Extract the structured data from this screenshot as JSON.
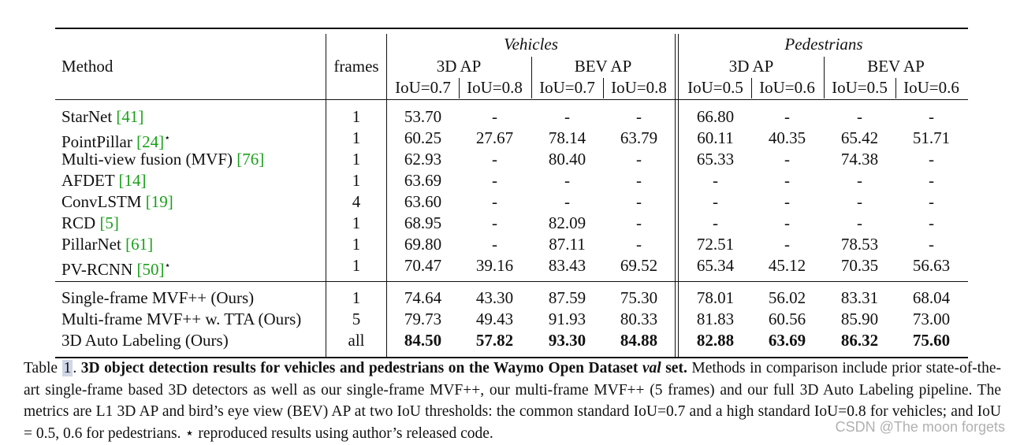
{
  "header": {
    "method": "Method",
    "frames": "frames",
    "vehicles": "Vehicles",
    "pedestrians": "Pedestrians",
    "ap3d": "3D AP",
    "bevap": "BEV AP",
    "iou": [
      "IoU=0.7",
      "IoU=0.8",
      "IoU=0.7",
      "IoU=0.8",
      "IoU=0.5",
      "IoU=0.6",
      "IoU=0.5",
      "IoU=0.6"
    ]
  },
  "rows": [
    {
      "name": "StarNet ",
      "cite": "[41]",
      "star": "",
      "frames": "1",
      "vals": [
        "53.70",
        "-",
        "-",
        "-",
        "66.80",
        "-",
        "-",
        "-"
      ],
      "bold": false
    },
    {
      "name": "PointPillar ",
      "cite": "[24]",
      "star": "⋆",
      "frames": "1",
      "vals": [
        "60.25",
        "27.67",
        "78.14",
        "63.79",
        "60.11",
        "40.35",
        "65.42",
        "51.71"
      ],
      "bold": false
    },
    {
      "name": "Multi-view fusion (MVF) ",
      "cite": "[76]",
      "star": "",
      "frames": "1",
      "vals": [
        "62.93",
        "-",
        "80.40",
        "-",
        "65.33",
        "-",
        "74.38",
        "-"
      ],
      "bold": false
    },
    {
      "name": "AFDET ",
      "cite": "[14]",
      "star": "",
      "frames": "1",
      "vals": [
        "63.69",
        "-",
        "-",
        "-",
        "-",
        "-",
        "-",
        "-"
      ],
      "bold": false
    },
    {
      "name": "ConvLSTM ",
      "cite": "[19]",
      "star": "",
      "frames": "4",
      "vals": [
        "63.60",
        "-",
        "-",
        "-",
        "-",
        "-",
        "-",
        "-"
      ],
      "bold": false
    },
    {
      "name": "RCD ",
      "cite": "[5]",
      "star": "",
      "frames": "1",
      "vals": [
        "68.95",
        "-",
        "82.09",
        "-",
        "-",
        "-",
        "-",
        "-"
      ],
      "bold": false
    },
    {
      "name": "PillarNet ",
      "cite": "[61]",
      "star": "",
      "frames": "1",
      "vals": [
        "69.80",
        "-",
        "87.11",
        "-",
        "72.51",
        "-",
        "78.53",
        "-"
      ],
      "bold": false
    },
    {
      "name": "PV-RCNN ",
      "cite": "[50]",
      "star": "⋆",
      "frames": "1",
      "vals": [
        "70.47",
        "39.16",
        "83.43",
        "69.52",
        "65.34",
        "45.12",
        "70.35",
        "56.63"
      ],
      "bold": false
    },
    {
      "name": "Single-frame MVF++ (Ours)",
      "cite": "",
      "star": "",
      "frames": "1",
      "vals": [
        "74.64",
        "43.30",
        "87.59",
        "75.30",
        "78.01",
        "56.02",
        "83.31",
        "68.04"
      ],
      "bold": false
    },
    {
      "name": "Multi-frame MVF++ w. TTA (Ours)",
      "cite": "",
      "star": "",
      "frames": "5",
      "vals": [
        "79.73",
        "49.43",
        "91.93",
        "80.33",
        "81.83",
        "60.56",
        "85.90",
        "73.00"
      ],
      "bold": false
    },
    {
      "name": "3D Auto Labeling (Ours)",
      "cite": "",
      "star": "",
      "frames": "all",
      "vals": [
        "84.50",
        "57.82",
        "93.30",
        "84.88",
        "82.88",
        "63.69",
        "86.32",
        "75.60"
      ],
      "bold": true
    }
  ],
  "caption": {
    "prefix": "Table ",
    "number": "1",
    "dot": ". ",
    "title_a": "3D object detection results for vehicles and pedestrians on the Waymo Open Dataset ",
    "title_it": "val",
    "title_b": " set.",
    "body": " Methods in comparison include prior state-of-the-art single-frame based 3D detectors as well as our single-frame MVF++, our multi-frame MVF++ (5 frames) and our full 3D Auto Labeling pipeline. The metrics are L1 3D AP and bird’s eye view (BEV) AP at two IoU thresholds: the common standard IoU=0.7 and a high standard IoU=0.8 for vehicles; and IoU = 0.5, 0.6 for pedestrians. ⋆ reproduced results using author’s released code."
  },
  "watermark": "CSDN @The moon forgets"
}
